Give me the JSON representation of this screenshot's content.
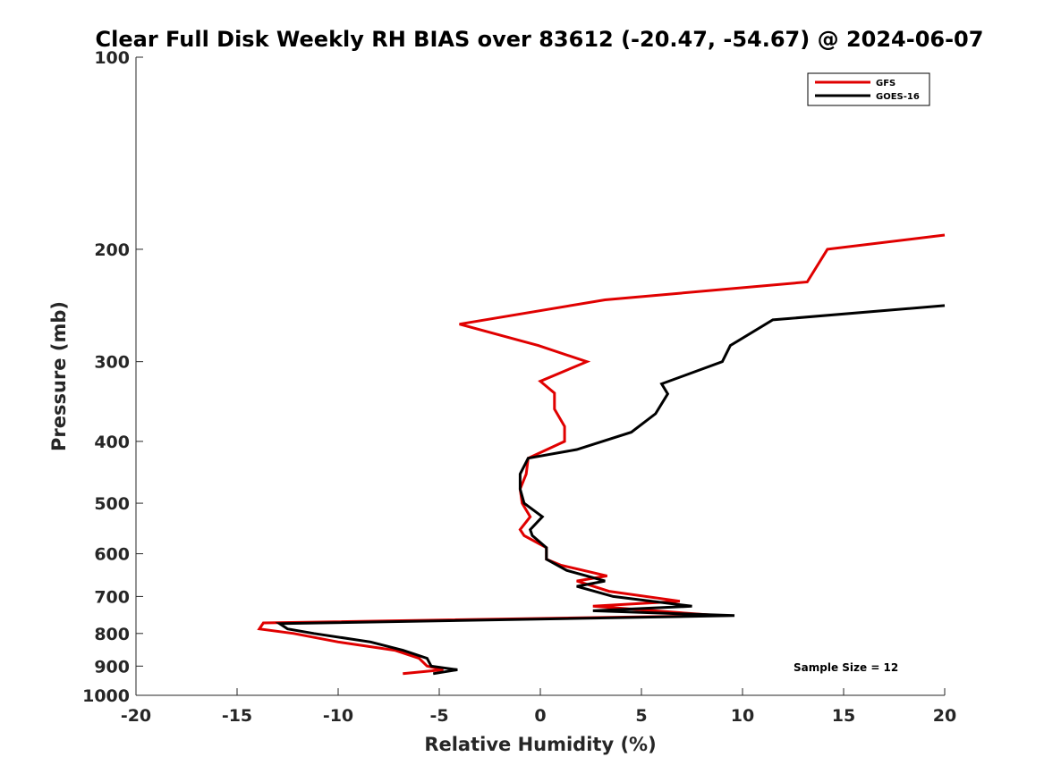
{
  "chart_data": {
    "type": "line",
    "title": "Clear Full Disk Weekly RH BIAS over 83612 (-20.47, -54.67) @ 2024-06-07",
    "xlabel": "Relative Humidity (%)",
    "ylabel": "Pressure (mb)",
    "xlim": [
      -20,
      20
    ],
    "ylim": [
      100,
      1000
    ],
    "yscale": "log",
    "y_reversed": true,
    "x_ticks": [
      "-20",
      "-15",
      "-10",
      "-5",
      "0",
      "5",
      "10",
      "15",
      "20"
    ],
    "y_ticks": [
      "100",
      "200",
      "300",
      "400",
      "500",
      "600",
      "700",
      "800",
      "900",
      "1000"
    ],
    "grid": false,
    "legend_position": "top-right",
    "annotation": "Sample Size = 12",
    "series": [
      {
        "name": "GFS",
        "color": "#e00000",
        "points": [
          [
            20.0,
            190
          ],
          [
            14.2,
            200
          ],
          [
            13.2,
            225
          ],
          [
            3.2,
            240
          ],
          [
            -4.0,
            262
          ],
          [
            -0.1,
            283
          ],
          [
            2.3,
            300
          ],
          [
            0.0,
            322
          ],
          [
            0.7,
            336
          ],
          [
            0.7,
            356
          ],
          [
            1.2,
            379
          ],
          [
            1.2,
            400
          ],
          [
            -0.6,
            425
          ],
          [
            -0.7,
            450
          ],
          [
            -1.0,
            475
          ],
          [
            -0.9,
            500
          ],
          [
            -0.5,
            525
          ],
          [
            -1.0,
            550
          ],
          [
            -0.8,
            562
          ],
          [
            0.3,
            587
          ],
          [
            0.3,
            612
          ],
          [
            1.0,
            625
          ],
          [
            3.3,
            650
          ],
          [
            1.8,
            662
          ],
          [
            3.4,
            687
          ],
          [
            6.9,
            712
          ],
          [
            2.6,
            725
          ],
          [
            8.8,
            750
          ],
          [
            -13.7,
            770
          ],
          [
            -13.9,
            787
          ],
          [
            -12.2,
            800
          ],
          [
            -10.0,
            825
          ],
          [
            -7.2,
            850
          ],
          [
            -6.0,
            875
          ],
          [
            -5.6,
            900
          ],
          [
            -4.8,
            912
          ],
          [
            -6.8,
            925
          ]
        ]
      },
      {
        "name": "GOES-16",
        "color": "#000000",
        "points": [
          [
            20.0,
            245
          ],
          [
            11.5,
            258
          ],
          [
            9.4,
            283
          ],
          [
            9.0,
            300
          ],
          [
            6.0,
            325
          ],
          [
            6.3,
            337
          ],
          [
            5.7,
            362
          ],
          [
            4.5,
            387
          ],
          [
            1.8,
            412
          ],
          [
            -0.6,
            425
          ],
          [
            -1.0,
            450
          ],
          [
            -1.0,
            475
          ],
          [
            -0.8,
            500
          ],
          [
            0.1,
            525
          ],
          [
            -0.5,
            550
          ],
          [
            -0.4,
            562
          ],
          [
            0.3,
            587
          ],
          [
            0.3,
            612
          ],
          [
            1.3,
            637
          ],
          [
            3.2,
            662
          ],
          [
            1.8,
            675
          ],
          [
            3.6,
            700
          ],
          [
            7.5,
            725
          ],
          [
            2.6,
            737
          ],
          [
            9.6,
            750
          ],
          [
            -12.9,
            772
          ],
          [
            -12.5,
            787
          ],
          [
            -11.2,
            800
          ],
          [
            -8.4,
            825
          ],
          [
            -6.8,
            850
          ],
          [
            -5.6,
            875
          ],
          [
            -5.4,
            900
          ],
          [
            -4.1,
            912
          ],
          [
            -5.3,
            925
          ]
        ]
      }
    ]
  }
}
